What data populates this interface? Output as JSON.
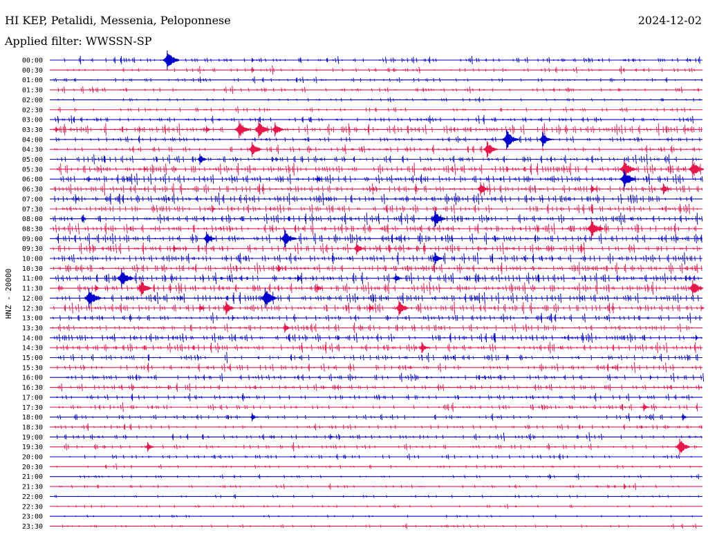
{
  "header": {
    "station": "HI KEP, Petalidi, Messenia, Peloponnese",
    "date": "2024-12-02",
    "filter": "Applied filter: WWSSN-SP"
  },
  "chart_data": {
    "type": "line",
    "title": "HI KEP, Petalidi, Messenia, Peloponnese",
    "ylabel": "HNZ - 20000",
    "colors": {
      "even": "#0000cc",
      "odd": "#e8174a"
    },
    "row_labels": [
      "00:00",
      "00:30",
      "01:00",
      "01:30",
      "02:00",
      "02:30",
      "03:00",
      "03:30",
      "04:00",
      "04:30",
      "05:00",
      "05:30",
      "06:00",
      "06:30",
      "07:00",
      "07:30",
      "08:00",
      "08:30",
      "09:00",
      "09:30",
      "10:00",
      "10:30",
      "11:00",
      "11:30",
      "12:00",
      "12:30",
      "13:00",
      "13:30",
      "14:00",
      "14:30",
      "15:00",
      "15:30",
      "16:00",
      "16:30",
      "17:00",
      "17:30",
      "18:00",
      "18:30",
      "19:00",
      "19:30",
      "20:00",
      "20:30",
      "21:00",
      "21:30",
      "22:00",
      "22:30",
      "23:00",
      "23:30"
    ],
    "activity": [
      0.6,
      0.5,
      0.4,
      0.45,
      0.3,
      0.5,
      0.55,
      1.0,
      0.6,
      0.7,
      0.8,
      1.0,
      1.0,
      1.0,
      1.0,
      0.9,
      1.0,
      1.0,
      1.0,
      1.0,
      1.0,
      1.0,
      1.0,
      1.0,
      1.0,
      1.0,
      0.8,
      0.8,
      0.9,
      0.9,
      0.8,
      0.8,
      0.7,
      0.7,
      0.6,
      0.6,
      0.5,
      0.5,
      0.55,
      0.55,
      0.45,
      0.35,
      0.3,
      0.35,
      0.25,
      0.2,
      0.15,
      0.25
    ],
    "events": [
      {
        "row": 0,
        "pos": 0.18,
        "amp": 14
      },
      {
        "row": 0,
        "pos": 0.31,
        "amp": 3
      },
      {
        "row": 1,
        "pos": 0.31,
        "amp": 4
      },
      {
        "row": 7,
        "pos": 0.29,
        "amp": 13
      },
      {
        "row": 7,
        "pos": 0.32,
        "amp": 13
      },
      {
        "row": 7,
        "pos": 0.345,
        "amp": 10
      },
      {
        "row": 7,
        "pos": 0.24,
        "amp": 5
      },
      {
        "row": 7,
        "pos": 0.01,
        "amp": 4
      },
      {
        "row": 8,
        "pos": 0.7,
        "amp": 14
      },
      {
        "row": 8,
        "pos": 0.755,
        "amp": 11
      },
      {
        "row": 9,
        "pos": 0.31,
        "amp": 11
      },
      {
        "row": 9,
        "pos": 0.67,
        "amp": 12
      },
      {
        "row": 10,
        "pos": 0.23,
        "amp": 8
      },
      {
        "row": 11,
        "pos": 0.88,
        "amp": 14
      },
      {
        "row": 11,
        "pos": 0.985,
        "amp": 13
      },
      {
        "row": 11,
        "pos": 0.145,
        "amp": 4
      },
      {
        "row": 11,
        "pos": 0.7,
        "amp": 4
      },
      {
        "row": 12,
        "pos": 0.88,
        "amp": 14
      },
      {
        "row": 12,
        "pos": 0.41,
        "amp": 5
      },
      {
        "row": 12,
        "pos": 0.06,
        "amp": 4
      },
      {
        "row": 13,
        "pos": 0.66,
        "amp": 10
      },
      {
        "row": 13,
        "pos": 0.83,
        "amp": 6
      },
      {
        "row": 13,
        "pos": 0.94,
        "amp": 8
      },
      {
        "row": 14,
        "pos": 0.04,
        "amp": 4
      },
      {
        "row": 15,
        "pos": 0.25,
        "amp": 4
      },
      {
        "row": 16,
        "pos": 0.59,
        "amp": 12
      },
      {
        "row": 16,
        "pos": 0.05,
        "amp": 5
      },
      {
        "row": 17,
        "pos": 0.83,
        "amp": 14
      },
      {
        "row": 18,
        "pos": 0.24,
        "amp": 10
      },
      {
        "row": 18,
        "pos": 0.36,
        "amp": 13
      },
      {
        "row": 19,
        "pos": 0.47,
        "amp": 9
      },
      {
        "row": 19,
        "pos": 0.19,
        "amp": 5
      },
      {
        "row": 20,
        "pos": 0.59,
        "amp": 9
      },
      {
        "row": 21,
        "pos": 0.35,
        "amp": 5
      },
      {
        "row": 22,
        "pos": 0.11,
        "amp": 14
      },
      {
        "row": 22,
        "pos": 0.53,
        "amp": 7
      },
      {
        "row": 22,
        "pos": 0.38,
        "amp": 5
      },
      {
        "row": 23,
        "pos": 0.14,
        "amp": 12
      },
      {
        "row": 23,
        "pos": 0.07,
        "amp": 5
      },
      {
        "row": 23,
        "pos": 0.41,
        "amp": 6
      },
      {
        "row": 23,
        "pos": 0.985,
        "amp": 12
      },
      {
        "row": 24,
        "pos": 0.06,
        "amp": 14
      },
      {
        "row": 24,
        "pos": 0.33,
        "amp": 14
      },
      {
        "row": 24,
        "pos": 0.2,
        "amp": 4
      },
      {
        "row": 25,
        "pos": 0.27,
        "amp": 10
      },
      {
        "row": 25,
        "pos": 0.49,
        "amp": 6
      },
      {
        "row": 25,
        "pos": 0.535,
        "amp": 11
      },
      {
        "row": 25,
        "pos": 0.23,
        "amp": 6
      },
      {
        "row": 25,
        "pos": 0.998,
        "amp": 4
      },
      {
        "row": 26,
        "pos": 0.28,
        "amp": 4
      },
      {
        "row": 27,
        "pos": 0.36,
        "amp": 7
      },
      {
        "row": 28,
        "pos": 0.99,
        "amp": 4
      },
      {
        "row": 29,
        "pos": 0.57,
        "amp": 8
      },
      {
        "row": 30,
        "pos": 0.7,
        "amp": 4
      },
      {
        "row": 32,
        "pos": 0.92,
        "amp": 3
      },
      {
        "row": 35,
        "pos": 0.91,
        "amp": 6
      },
      {
        "row": 36,
        "pos": 0.31,
        "amp": 6
      },
      {
        "row": 36,
        "pos": 0.97,
        "amp": 5
      },
      {
        "row": 38,
        "pos": 0.43,
        "amp": 4
      },
      {
        "row": 39,
        "pos": 0.15,
        "amp": 7
      },
      {
        "row": 39,
        "pos": 0.965,
        "amp": 12
      },
      {
        "row": 43,
        "pos": 0.88,
        "amp": 4
      }
    ]
  }
}
